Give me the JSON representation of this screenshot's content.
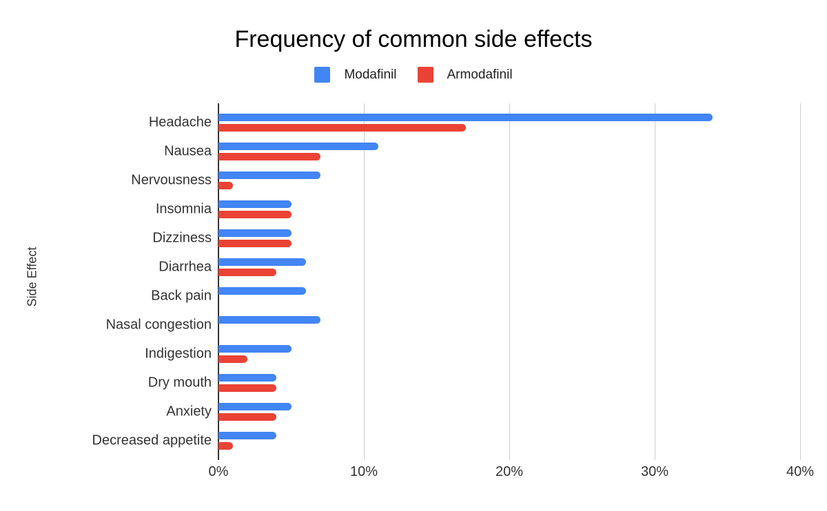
{
  "chart_data": {
    "type": "bar",
    "orientation": "horizontal",
    "title": "Frequency of common side effects",
    "xlabel": "",
    "ylabel": "Side Effect",
    "categories": [
      "Headache",
      "Nausea",
      "Nervousness",
      "Insomnia",
      "Dizziness",
      "Diarrhea",
      "Back pain",
      "Nasal congestion",
      "Indigestion",
      "Dry mouth",
      "Anxiety",
      "Decreased appetite"
    ],
    "series": [
      {
        "name": "Modafinil",
        "color": "#4285F4",
        "values": [
          34,
          11,
          7,
          5,
          5,
          6,
          6,
          7,
          5,
          4,
          5,
          4
        ]
      },
      {
        "name": "Armodafinil",
        "color": "#EA4335",
        "values": [
          17,
          7,
          1,
          5,
          5,
          4,
          0,
          0,
          2,
          4,
          4,
          1
        ]
      }
    ],
    "xlim": [
      0,
      40
    ],
    "x_ticks": [
      {
        "label": "0%",
        "value": 0
      },
      {
        "label": "10%",
        "value": 10
      },
      {
        "label": "20%",
        "value": 20
      },
      {
        "label": "30%",
        "value": 30
      },
      {
        "label": "40%",
        "value": 40
      }
    ],
    "grid": true,
    "legend_position": "top",
    "colors": {
      "background": "#ffffff",
      "gridline": "#cccccc",
      "axis_line": "#333333",
      "title_text": "#000000",
      "axis_text": "#333333",
      "legend_text": "#212121"
    }
  }
}
